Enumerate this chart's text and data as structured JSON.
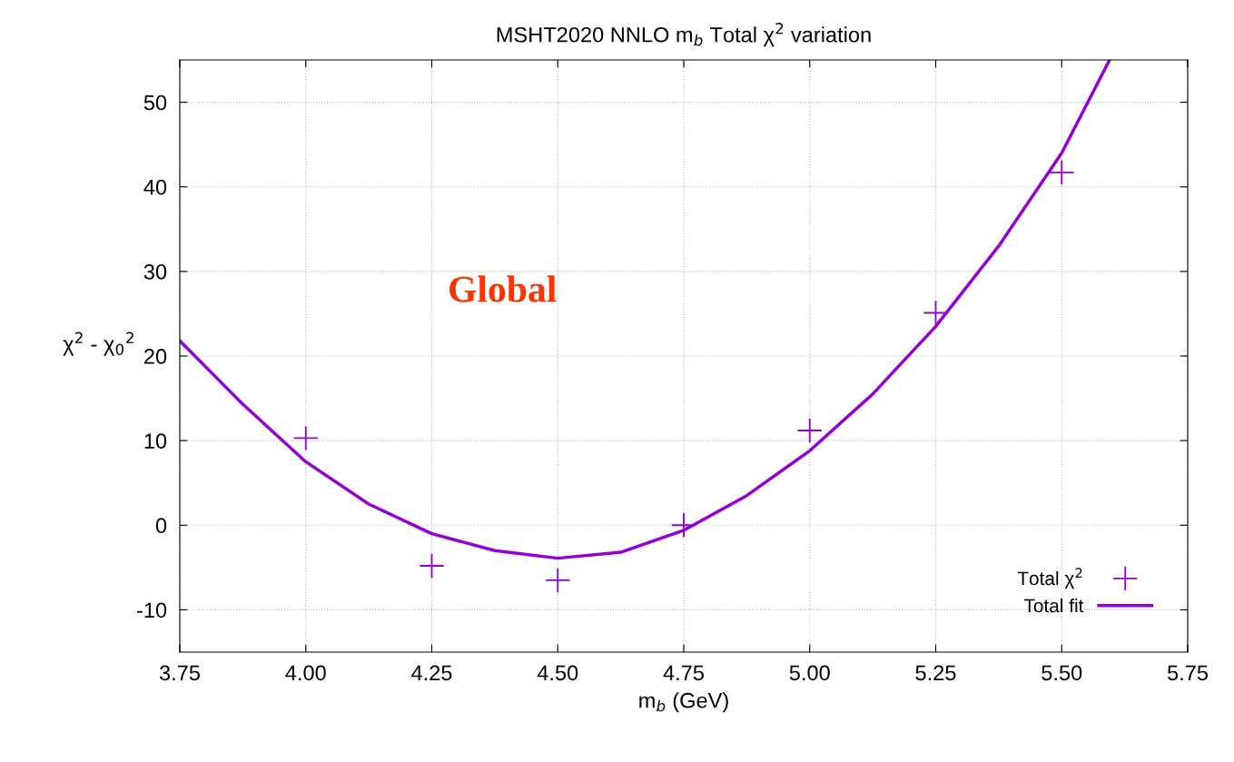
{
  "chart_data": {
    "type": "scatter",
    "title": "MSHT2020 NNLO m$_{b}$ Total χ$^{2}$ variation",
    "xlabel": "m$_{b}$ (GeV)",
    "ylabel": "χ$^{2}$ - χ$_{0}$$^{2}$",
    "annotations": [
      "Global"
    ],
    "xlim": [
      3.75,
      5.75
    ],
    "xticks": [
      {
        "value": 3.75,
        "label": "3.75"
      },
      {
        "value": 4.0,
        "label": "4.00"
      },
      {
        "value": 4.25,
        "label": "4.25"
      },
      {
        "value": 4.5,
        "label": "4.50"
      },
      {
        "value": 4.75,
        "label": "4.75"
      },
      {
        "value": 5.0,
        "label": "5.00"
      },
      {
        "value": 5.25,
        "label": "5.25"
      },
      {
        "value": 5.5,
        "label": "5.50"
      },
      {
        "value": 5.75,
        "label": "5.75"
      }
    ],
    "ylim": [
      -15,
      55
    ],
    "yticks": [
      -10,
      0,
      10,
      20,
      30,
      40,
      50
    ],
    "grid": true,
    "legend": "bottom right",
    "series": [
      {
        "name": "Total χ$^{2}$",
        "marker": "cross",
        "color": "#9400d3",
        "x": [
          4.0,
          4.25,
          4.5,
          4.75,
          5.0,
          5.25,
          5.5
        ],
        "values": [
          10.3,
          -4.8,
          -6.5,
          0.0,
          11.2,
          25.1,
          41.7
        ]
      },
      {
        "name": "Total fit",
        "type": "line",
        "marker": "none",
        "line_style": "solid",
        "color": "#9400d3",
        "x": [
          3.75,
          3.875,
          4.0,
          4.125,
          4.25,
          4.375,
          4.5,
          4.625,
          4.75,
          4.875,
          5.0,
          5.125,
          5.25,
          5.375,
          5.5,
          5.595
        ],
        "values": [
          21.8,
          14.3,
          7.5,
          2.5,
          -1.0,
          -3.0,
          -3.9,
          -3.2,
          -0.6,
          3.5,
          8.8,
          15.5,
          23.5,
          33.0,
          44.0,
          55.0
        ]
      }
    ]
  }
}
